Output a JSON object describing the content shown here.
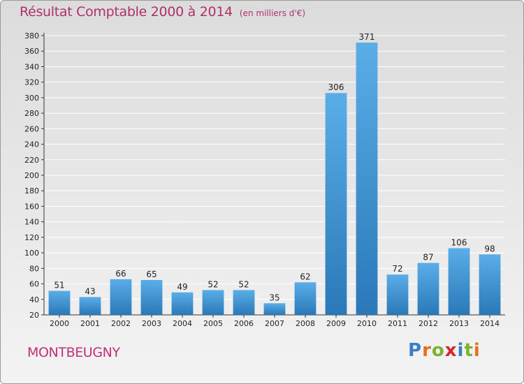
{
  "header": {
    "title": "Résultat Comptable 2000 à 2014",
    "unit": "(en milliers d'€)"
  },
  "footer": {
    "commune": "MONTBEUGNY",
    "logo": "Proxiti"
  },
  "colors": {
    "bar_top": "#5aaee8",
    "bar_bottom": "#2a78b8",
    "title": "#b0306a",
    "grid": "#ffffff"
  },
  "chart_data": {
    "type": "bar",
    "categories": [
      "2000",
      "2001",
      "2002",
      "2003",
      "2004",
      "2005",
      "2006",
      "2007",
      "2008",
      "2009",
      "2010",
      "2011",
      "2012",
      "2013",
      "2014"
    ],
    "values": [
      51,
      43,
      66,
      65,
      49,
      52,
      52,
      35,
      62,
      306,
      371,
      72,
      87,
      106,
      98
    ],
    "title": "Résultat Comptable 2000 à 2014",
    "ylim": [
      20,
      380
    ],
    "yticks": [
      20,
      40,
      60,
      80,
      100,
      120,
      140,
      160,
      180,
      200,
      220,
      240,
      260,
      280,
      300,
      320,
      340,
      360,
      380
    ],
    "grid": true,
    "show_value_labels": true
  }
}
